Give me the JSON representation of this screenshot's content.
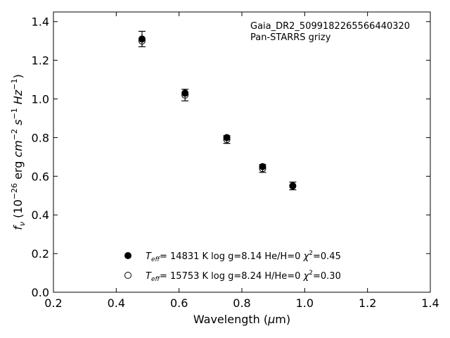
{
  "chart_data": {
    "type": "scatter",
    "title": "",
    "xlabel": "Wavelength (μm)",
    "ylabel": "fν (10⁻²⁶ erg cm⁻² s⁻¹ Hz⁻¹)",
    "xlim": [
      0.2,
      1.4
    ],
    "ylim": [
      0.0,
      1.45
    ],
    "x_ticks": [
      0.2,
      0.4,
      0.6,
      0.8,
      1.0,
      1.2,
      1.4
    ],
    "x_tick_labels": [
      "0.2",
      "0.4",
      "0.6",
      "0.8",
      "1.0",
      "1.2",
      "1.4"
    ],
    "y_ticks": [
      0.0,
      0.2,
      0.4,
      0.6,
      0.8,
      1.0,
      1.2,
      1.4
    ],
    "y_tick_labels": [
      "0.0",
      "0.2",
      "0.4",
      "0.6",
      "0.8",
      "1.0",
      "1.2",
      "1.4"
    ],
    "grid": false,
    "annotations": [
      "Gaia_DR2_5099182265566440320",
      "Pan-STARRS grizy"
    ],
    "observed": {
      "x": [
        0.482,
        0.619,
        0.752,
        0.866,
        0.962
      ],
      "y": [
        1.31,
        1.02,
        0.79,
        0.64,
        0.55
      ],
      "err": [
        0.04,
        0.03,
        0.02,
        0.02,
        0.02
      ]
    },
    "series": [
      {
        "legend": "T_eff= 14831 K  log g=8.14  He/H=0  χ²=0.45",
        "marker": "filled-circle",
        "x": [
          0.482,
          0.619,
          0.752,
          0.866,
          0.962
        ],
        "y": [
          1.31,
          1.03,
          0.8,
          0.65,
          0.55
        ]
      },
      {
        "legend": "T_eff= 15753 K  log g=8.24  H/He=0  χ²=0.30",
        "marker": "open-circle",
        "x": [
          0.482,
          0.619,
          0.752,
          0.866,
          0.962
        ],
        "y": [
          1.3,
          1.02,
          0.79,
          0.64,
          0.55
        ]
      }
    ],
    "legend_position": "lower-center"
  }
}
